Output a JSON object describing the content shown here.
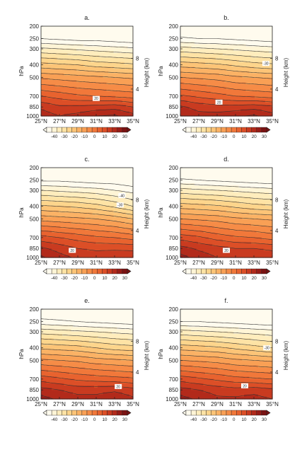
{
  "panel_labels": [
    "a.",
    "b.",
    "c.",
    "d.",
    "e.",
    "f."
  ],
  "axes": {
    "y_left_label": "hPa",
    "y_right_label": "Height (km)",
    "pressure_ticks": [
      "200",
      "250",
      "300",
      "400",
      "500",
      "700",
      "850",
      "1000"
    ],
    "height_ticks": [
      "8",
      "4"
    ],
    "x_ticks": [
      "25°N",
      "27°N",
      "29°N",
      "31°N",
      "33°N",
      "35°N"
    ]
  },
  "colorbar": {
    "tick_labels": [
      "-40",
      "-30",
      "-20",
      "-10",
      "0",
      "10",
      "20",
      "30"
    ],
    "levels": [
      -45,
      -40,
      -35,
      -30,
      -25,
      -20,
      -15,
      -10,
      -5,
      0,
      5,
      10,
      15,
      20,
      25,
      30
    ],
    "colors": [
      "#fffbee",
      "#fff5d6",
      "#ffedbd",
      "#fee3a5",
      "#fdd58c",
      "#fcc477",
      "#fbb265",
      "#f9a055",
      "#f68c47",
      "#f1783a",
      "#e8632f",
      "#dc4f27",
      "#c93b20",
      "#b22a1b",
      "#961c17",
      "#7a1212"
    ]
  },
  "chart_data": [
    {
      "panel": "a.",
      "type": "heatmap",
      "xlabel": "",
      "ylabel": "hPa",
      "y2label": "Height (km)",
      "xlim": [
        25,
        35
      ],
      "ylim": [
        1000,
        200
      ],
      "y_scale": "log-pressure",
      "x": [
        25,
        27,
        29,
        31,
        33,
        35
      ],
      "pressure_levels": [
        200,
        250,
        300,
        400,
        500,
        700,
        850,
        1000
      ],
      "values": [
        [
          -54,
          -54,
          -55,
          -55,
          -56,
          -57
        ],
        [
          -45,
          -46,
          -47,
          -47,
          -48,
          -49
        ],
        [
          -34,
          -35,
          -36,
          -37,
          -38,
          -39
        ],
        [
          -18,
          -19,
          -20,
          -22,
          -23,
          -24
        ],
        [
          -6,
          -7,
          -8,
          -9,
          -10,
          -11
        ],
        [
          10,
          8,
          6,
          5,
          4,
          3
        ],
        [
          19,
          16,
          16,
          17,
          18,
          15
        ],
        [
          23,
          20,
          22,
          25,
          26,
          22
        ]
      ],
      "contour_labels": [
        {
          "value": "20",
          "x": 31.0,
          "pressure": 730
        }
      ]
    },
    {
      "panel": "b.",
      "type": "heatmap",
      "xlabel": "",
      "ylabel": "hPa",
      "y2label": "Height (km)",
      "xlim": [
        25,
        35
      ],
      "ylim": [
        1000,
        200
      ],
      "y_scale": "log-pressure",
      "x": [
        25,
        27,
        29,
        31,
        33,
        35
      ],
      "pressure_levels": [
        200,
        250,
        300,
        400,
        500,
        700,
        850,
        1000
      ],
      "values": [
        [
          -52,
          -52,
          -53,
          -54,
          -55,
          -56
        ],
        [
          -44,
          -45,
          -45,
          -46,
          -47,
          -48
        ],
        [
          -33,
          -34,
          -35,
          -36,
          -37,
          -38
        ],
        [
          -17,
          -18,
          -19,
          -21,
          -23,
          -24
        ],
        [
          -5,
          -6,
          -7,
          -9,
          -10,
          -11
        ],
        [
          11,
          9,
          7,
          5,
          4,
          3
        ],
        [
          21,
          18,
          17,
          17,
          18,
          16
        ],
        [
          25,
          22,
          22,
          24,
          26,
          22
        ]
      ],
      "contour_labels": [
        {
          "value": "20",
          "x": 29.2,
          "pressure": 780
        },
        {
          "value": "-30",
          "x": 34.3,
          "pressure": 390
        }
      ]
    },
    {
      "panel": "c.",
      "type": "heatmap",
      "xlabel": "",
      "ylabel": "hPa",
      "y2label": "Height (km)",
      "xlim": [
        25,
        35
      ],
      "ylim": [
        1000,
        200
      ],
      "y_scale": "log-pressure",
      "x": [
        25,
        27,
        29,
        31,
        33,
        35
      ],
      "pressure_levels": [
        200,
        250,
        300,
        400,
        500,
        700,
        850,
        1000
      ],
      "values": [
        [
          -55,
          -55,
          -56,
          -56,
          -57,
          -58
        ],
        [
          -46,
          -46,
          -47,
          -48,
          -48,
          -50
        ],
        [
          -35,
          -36,
          -37,
          -38,
          -40,
          -42
        ],
        [
          -19,
          -20,
          -21,
          -23,
          -26,
          -30
        ],
        [
          -7,
          -8,
          -9,
          -10,
          -12,
          -15
        ],
        [
          12,
          10,
          8,
          6,
          5,
          3
        ],
        [
          21,
          18,
          15,
          14,
          14,
          14
        ],
        [
          26,
          22,
          19,
          18,
          19,
          18
        ]
      ],
      "contour_labels": [
        {
          "value": "20",
          "x": 28.4,
          "pressure": 880
        },
        {
          "value": "-40",
          "x": 33.8,
          "pressure": 330
        },
        {
          "value": "-30",
          "x": 33.6,
          "pressure": 390
        }
      ]
    },
    {
      "panel": "d.",
      "type": "heatmap",
      "xlabel": "",
      "ylabel": "hPa",
      "y2label": "Height (km)",
      "xlim": [
        25,
        35
      ],
      "ylim": [
        1000,
        200
      ],
      "y_scale": "log-pressure",
      "x": [
        25,
        27,
        29,
        31,
        33,
        35
      ],
      "pressure_levels": [
        200,
        250,
        300,
        400,
        500,
        700,
        850,
        1000
      ],
      "values": [
        [
          -53,
          -53,
          -54,
          -55,
          -56,
          -57
        ],
        [
          -44,
          -45,
          -46,
          -47,
          -48,
          -49
        ],
        [
          -33,
          -34,
          -35,
          -36,
          -37,
          -38
        ],
        [
          -17,
          -18,
          -19,
          -21,
          -23,
          -24
        ],
        [
          -5,
          -6,
          -7,
          -9,
          -10,
          -11
        ],
        [
          13,
          11,
          8,
          6,
          5,
          3
        ],
        [
          22,
          19,
          17,
          15,
          15,
          14
        ],
        [
          27,
          23,
          20,
          19,
          19,
          18
        ]
      ],
      "contour_labels": [
        {
          "value": "20",
          "x": 30.0,
          "pressure": 880
        }
      ]
    },
    {
      "panel": "e.",
      "type": "heatmap",
      "xlabel": "",
      "ylabel": "hPa",
      "y2label": "Height (km)",
      "xlim": [
        25,
        35
      ],
      "ylim": [
        1000,
        200
      ],
      "y_scale": "log-pressure",
      "x": [
        25,
        27,
        29,
        31,
        33,
        35
      ],
      "pressure_levels": [
        200,
        250,
        300,
        400,
        500,
        700,
        850,
        1000
      ],
      "values": [
        [
          -52,
          -52,
          -53,
          -54,
          -55,
          -56
        ],
        [
          -43,
          -44,
          -45,
          -46,
          -47,
          -48
        ],
        [
          -32,
          -33,
          -34,
          -35,
          -36,
          -37
        ],
        [
          -16,
          -17,
          -18,
          -20,
          -22,
          -23
        ],
        [
          -4,
          -5,
          -6,
          -8,
          -9,
          -10
        ],
        [
          13,
          11,
          9,
          8,
          7,
          6
        ],
        [
          22,
          20,
          18,
          18,
          19,
          17
        ],
        [
          27,
          24,
          22,
          22,
          24,
          21
        ]
      ],
      "contour_labels": [
        {
          "value": "20",
          "x": 33.4,
          "pressure": 800
        }
      ]
    },
    {
      "panel": "f.",
      "type": "heatmap",
      "xlabel": "",
      "ylabel": "hPa",
      "y2label": "Height (km)",
      "xlim": [
        25,
        35
      ],
      "ylim": [
        1000,
        200
      ],
      "y_scale": "log-pressure",
      "x": [
        25,
        27,
        29,
        31,
        33,
        35
      ],
      "pressure_levels": [
        200,
        250,
        300,
        400,
        500,
        700,
        850,
        1000
      ],
      "values": [
        [
          -54,
          -54,
          -55,
          -55,
          -56,
          -57
        ],
        [
          -45,
          -45,
          -46,
          -47,
          -48,
          -49
        ],
        [
          -33,
          -34,
          -35,
          -36,
          -37,
          -38
        ],
        [
          -17,
          -18,
          -19,
          -21,
          -23,
          -25
        ],
        [
          -5,
          -6,
          -7,
          -9,
          -10,
          -11
        ],
        [
          13,
          11,
          9,
          7,
          6,
          5
        ],
        [
          22,
          20,
          18,
          17,
          18,
          16
        ],
        [
          27,
          24,
          21,
          21,
          22,
          20
        ]
      ],
      "contour_labels": [
        {
          "value": "20",
          "x": 32.0,
          "pressure": 790
        },
        {
          "value": "-30",
          "x": 34.4,
          "pressure": 400
        }
      ]
    }
  ]
}
